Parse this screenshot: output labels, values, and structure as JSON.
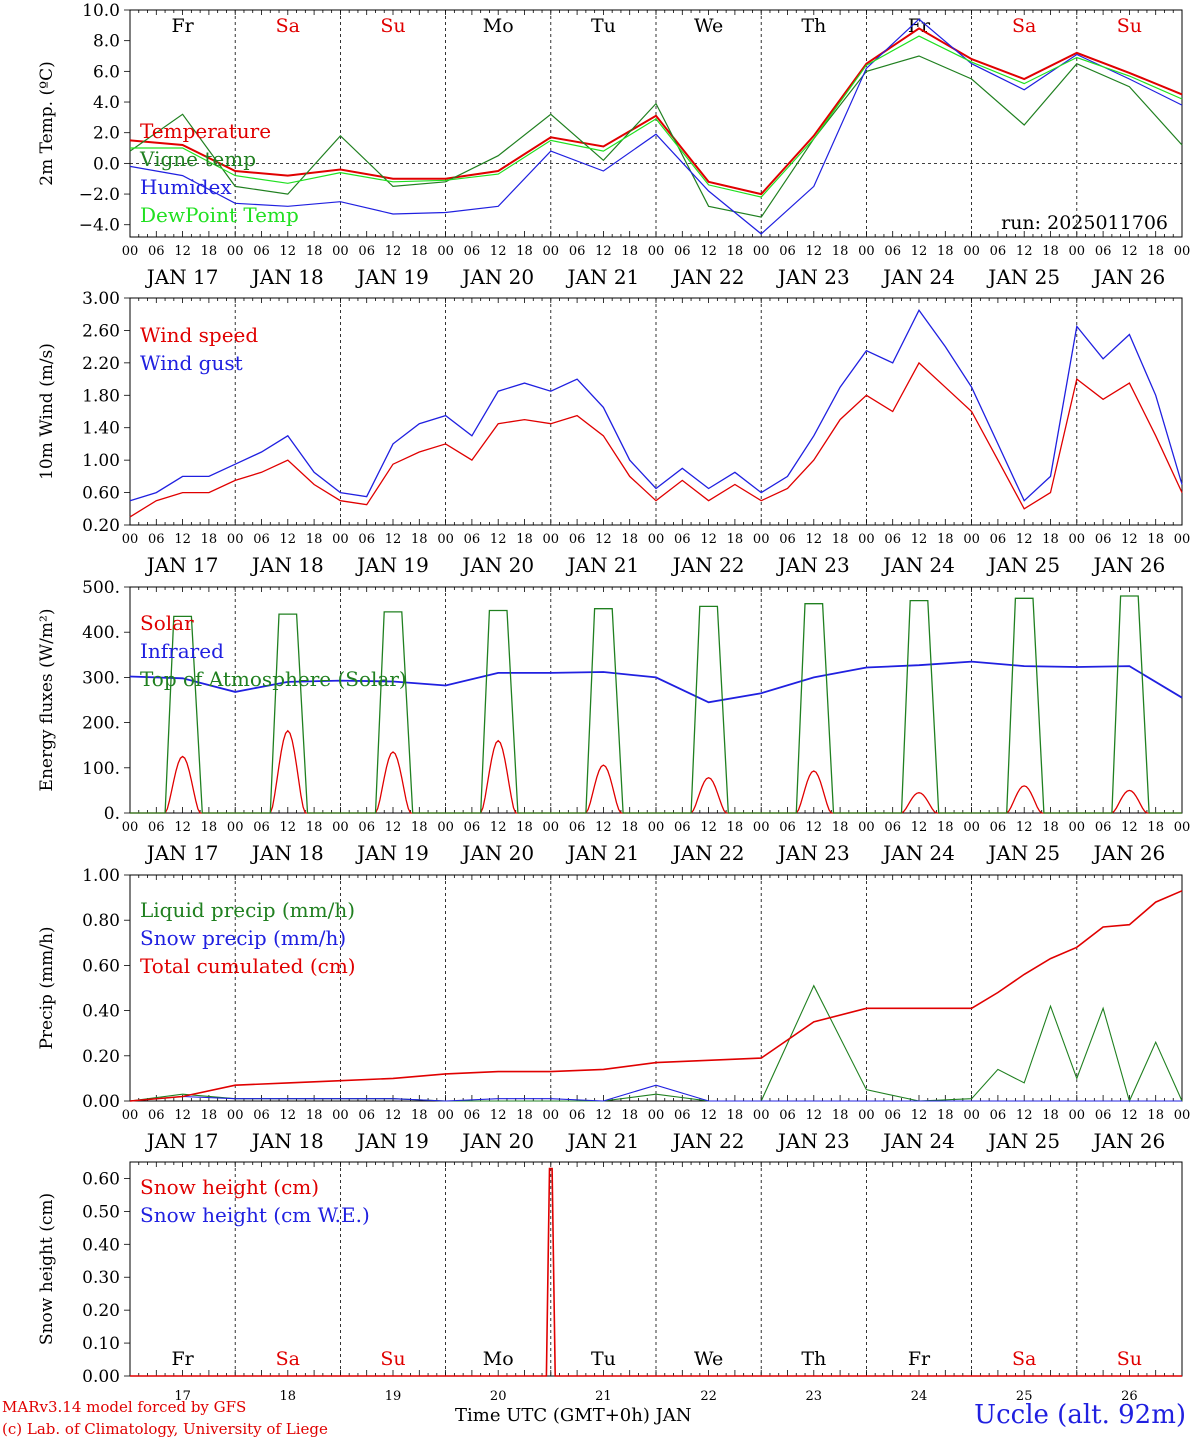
{
  "days": [
    "Fr",
    "Sa",
    "Su",
    "Mo",
    "Tu",
    "We",
    "Th",
    "Fr",
    "Sa",
    "Su"
  ],
  "weekend_days": [
    "Sa",
    "Su"
  ],
  "dates": [
    "JAN 17",
    "JAN 18",
    "JAN 19",
    "JAN 20",
    "JAN 21",
    "JAN 22",
    "JAN 23",
    "JAN 24",
    "JAN 25",
    "JAN 26"
  ],
  "date_numbers": [
    "17",
    "18",
    "19",
    "20",
    "21",
    "22",
    "23",
    "24",
    "25",
    "26"
  ],
  "hour_ticks": [
    "00",
    "06",
    "12",
    "18"
  ],
  "colors": {
    "red": "#e00000",
    "green": "#208020",
    "blue": "#2020e0",
    "lightgreen": "#20e020"
  },
  "chart_data": [
    {
      "type": "line",
      "ylabel": "2m Temp. (ºC)",
      "yticks": [
        "10.0",
        "8.0",
        "6.0",
        "4.0",
        "2.0",
        "0.0",
        "−2.0",
        "−4.0"
      ],
      "ylim": [
        -4.8,
        10
      ],
      "note": "run: 2025011706",
      "x_hours": [
        0,
        12,
        24,
        36,
        48,
        60,
        72,
        84,
        96,
        108,
        120,
        132,
        144,
        156,
        168,
        180,
        192,
        204,
        216,
        228,
        240
      ],
      "series": [
        {
          "name": "Temperature",
          "color": "red",
          "values": [
            1.5,
            1.2,
            -0.5,
            -0.8,
            -0.4,
            -1.0,
            -1.0,
            -0.5,
            1.7,
            1.1,
            3.1,
            -1.2,
            -2.0,
            1.8,
            6.5,
            8.8,
            6.8,
            5.5,
            7.2,
            5.9,
            4.5
          ]
        },
        {
          "name": "Vigne temp",
          "color": "green",
          "values": [
            0.8,
            3.2,
            -1.5,
            -2.0,
            1.8,
            -1.5,
            -1.2,
            0.5,
            3.2,
            0.2,
            3.9,
            -2.8,
            -3.5,
            1.6,
            6.0,
            7.0,
            5.5,
            2.5,
            6.5,
            5.0,
            1.2
          ]
        },
        {
          "name": "Humidex",
          "color": "blue",
          "values": [
            -0.2,
            -0.8,
            -2.6,
            -2.8,
            -2.5,
            -3.3,
            -3.2,
            -2.8,
            0.8,
            -0.5,
            1.9,
            -1.8,
            -4.6,
            -1.5,
            6.2,
            9.4,
            6.5,
            4.8,
            7.1,
            5.5,
            3.8
          ]
        },
        {
          "name": "DewPoint Temp",
          "color": "lightgreen",
          "values": [
            1.0,
            1.0,
            -0.8,
            -1.3,
            -0.6,
            -1.2,
            -1.1,
            -0.7,
            1.5,
            0.8,
            2.9,
            -1.4,
            -2.2,
            1.6,
            6.4,
            8.3,
            6.6,
            5.2,
            6.9,
            5.7,
            4.2
          ]
        }
      ]
    },
    {
      "type": "line",
      "ylabel": "10m Wind (m/s)",
      "yticks": [
        "3.00",
        "2.60",
        "2.20",
        "1.80",
        "1.40",
        "1.00",
        "0.60",
        "0.20"
      ],
      "ylim": [
        0.2,
        3.0
      ],
      "x_hours": [
        0,
        6,
        12,
        18,
        24,
        30,
        36,
        42,
        48,
        54,
        60,
        66,
        72,
        78,
        84,
        90,
        96,
        102,
        108,
        114,
        120,
        126,
        132,
        138,
        144,
        150,
        156,
        162,
        168,
        174,
        180,
        186,
        192,
        198,
        204,
        210,
        216,
        222,
        228,
        234,
        240
      ],
      "series": [
        {
          "name": "Wind speed",
          "color": "red",
          "values": [
            0.3,
            0.5,
            0.6,
            0.6,
            0.75,
            0.85,
            1.0,
            0.7,
            0.5,
            0.45,
            0.95,
            1.1,
            1.2,
            1.0,
            1.45,
            1.5,
            1.45,
            1.55,
            1.3,
            0.8,
            0.5,
            0.75,
            0.5,
            0.7,
            0.5,
            0.65,
            1.0,
            1.5,
            1.8,
            1.6,
            2.2,
            1.9,
            1.6,
            1.0,
            0.4,
            0.6,
            2.0,
            1.75,
            1.95,
            1.3,
            0.6
          ]
        },
        {
          "name": "Wind gust",
          "color": "blue",
          "values": [
            0.5,
            0.6,
            0.8,
            0.8,
            0.95,
            1.1,
            1.3,
            0.85,
            0.6,
            0.55,
            1.2,
            1.45,
            1.55,
            1.3,
            1.85,
            1.95,
            1.85,
            2.0,
            1.65,
            1.0,
            0.65,
            0.9,
            0.65,
            0.85,
            0.6,
            0.8,
            1.3,
            1.9,
            2.35,
            2.2,
            2.85,
            2.4,
            1.9,
            1.2,
            0.5,
            0.8,
            2.65,
            2.25,
            2.55,
            1.8,
            0.7
          ]
        }
      ]
    },
    {
      "type": "line",
      "ylabel": "Energy fluxes (W/m²)",
      "yticks": [
        "500.",
        "400.",
        "300.",
        "200.",
        "100.",
        "0."
      ],
      "ylim": [
        0,
        500
      ],
      "series": [
        {
          "name": "Solar",
          "color": "red",
          "peaks": [
            125,
            182,
            135,
            160,
            106,
            78,
            93,
            45,
            60,
            50
          ]
        },
        {
          "name": "Infrared",
          "color": "blue",
          "x_hours": [
            0,
            12,
            24,
            36,
            48,
            60,
            72,
            84,
            96,
            108,
            120,
            132,
            144,
            156,
            168,
            180,
            192,
            204,
            216,
            228,
            240
          ],
          "values": [
            302,
            298,
            268,
            290,
            293,
            291,
            282,
            310,
            310,
            312,
            300,
            245,
            265,
            300,
            322,
            327,
            335,
            325,
            323,
            325,
            255
          ]
        },
        {
          "name": "Top of Atmosphere (Solar)",
          "color": "green",
          "peaks": [
            435,
            440,
            445,
            448,
            452,
            457,
            463,
            470,
            475,
            480
          ]
        }
      ]
    },
    {
      "type": "line",
      "ylabel": "Precip (mm/h)",
      "yticks": [
        "1.00",
        "0.80",
        "0.60",
        "0.40",
        "0.20",
        "0.00"
      ],
      "ylim": [
        0,
        1.0
      ],
      "x_hours": [
        0,
        12,
        24,
        36,
        48,
        60,
        72,
        84,
        96,
        108,
        120,
        132,
        144,
        156,
        168,
        180,
        192,
        198,
        204,
        210,
        216,
        222,
        228,
        234,
        240
      ],
      "series": [
        {
          "name": "Liquid precip (mm/h)",
          "color": "green",
          "values": [
            0,
            0.03,
            0.01,
            0.01,
            0.01,
            0.01,
            0,
            0,
            0,
            0,
            0.03,
            0,
            0,
            0.51,
            0.05,
            0,
            0.01,
            0.14,
            0.08,
            0.42,
            0.1,
            0.41,
            0,
            0.26,
            0
          ]
        },
        {
          "name": "Snow precip (mm/h)",
          "color": "blue",
          "values": [
            0,
            0.02,
            0.01,
            0.01,
            0.01,
            0.01,
            0,
            0.01,
            0.01,
            0,
            0.07,
            0,
            0,
            0,
            0,
            0,
            0,
            0,
            0,
            0,
            0,
            0,
            0,
            0,
            0
          ]
        },
        {
          "name": "Total cumulated (cm)",
          "color": "red",
          "values": [
            0,
            0.02,
            0.07,
            0.08,
            0.09,
            0.1,
            0.12,
            0.13,
            0.13,
            0.14,
            0.17,
            0.18,
            0.19,
            0.35,
            0.41,
            0.41,
            0.41,
            0.48,
            0.56,
            0.63,
            0.68,
            0.77,
            0.78,
            0.88,
            0.93
          ]
        }
      ]
    },
    {
      "type": "line",
      "ylabel": "Snow height (cm)",
      "yticks": [
        "0.60",
        "0.50",
        "0.40",
        "0.30",
        "0.20",
        "0.10",
        "0.00"
      ],
      "ylim": [
        0,
        0.65
      ],
      "series": [
        {
          "name": "Snow height (cm)",
          "color": "red",
          "spike_hour": 96,
          "spike_value": 0.63
        },
        {
          "name": "Snow height (cm W.E.)",
          "color": "blue"
        }
      ]
    }
  ],
  "footer": {
    "model": "MARv3.14 model forced by GFS",
    "credit": "(c) Lab. of Climatology, University of Liege",
    "axis_title": "Time UTC (GMT+0h) JAN",
    "station": "Uccle (alt. 92m)"
  }
}
